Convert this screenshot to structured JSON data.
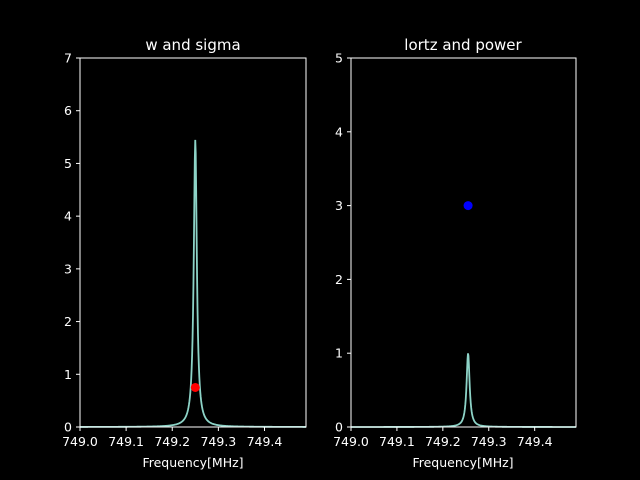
{
  "chart_data": [
    {
      "type": "line",
      "title": "w and sigma",
      "xlabel": "Frequency[MHz]",
      "ylabel": "",
      "xlim": [
        749.0,
        749.49
      ],
      "ylim": [
        0,
        7
      ],
      "x_ticks": [
        "749.0",
        "749.1",
        "749.2",
        "749.3",
        "749.4"
      ],
      "y_ticks": [
        "0",
        "1",
        "2",
        "3",
        "4",
        "5",
        "6",
        "7"
      ],
      "line": {
        "center": 749.25,
        "peak": 5.45,
        "hwhm": 0.004,
        "color": "#8dd3c7"
      },
      "marker": {
        "x": 749.25,
        "y": 0.75,
        "color": "#ff0000"
      }
    },
    {
      "type": "line",
      "title": "lortz and power",
      "xlabel": "Frequency[MHz]",
      "ylabel": "",
      "xlim": [
        749.0,
        749.49
      ],
      "ylim": [
        0,
        5
      ],
      "x_ticks": [
        "749.0",
        "749.1",
        "749.2",
        "749.3",
        "749.4"
      ],
      "y_ticks": [
        "0",
        "1",
        "2",
        "3",
        "4",
        "5"
      ],
      "line": {
        "center": 749.255,
        "peak": 1.0,
        "hwhm": 0.004,
        "color": "#8dd3c7"
      },
      "marker": {
        "x": 749.255,
        "y": 3.0,
        "color": "#0000ff"
      }
    }
  ]
}
